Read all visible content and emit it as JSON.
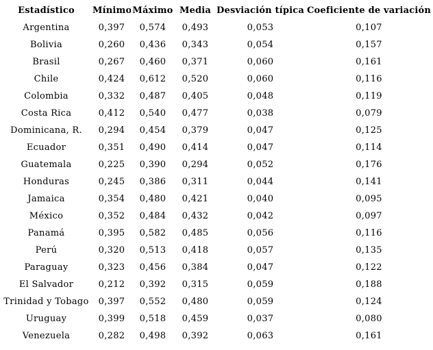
{
  "colors": {
    "background": "#ffffff",
    "text": "#000000"
  },
  "chart_data": {
    "type": "table",
    "title": "",
    "columns": [
      "Estadístico",
      "Mínimo",
      "Máximo",
      "Media",
      "Desviación típica",
      "Coeficiente de variación"
    ],
    "rows": [
      [
        "Argentina",
        "0,397",
        "0,574",
        "0,493",
        "0,053",
        "0,107"
      ],
      [
        "Bolivia",
        "0,260",
        "0,436",
        "0,343",
        "0,054",
        "0,157"
      ],
      [
        "Brasil",
        "0,267",
        "0,460",
        "0,371",
        "0,060",
        "0,161"
      ],
      [
        "Chile",
        "0,424",
        "0,612",
        "0,520",
        "0,060",
        "0,116"
      ],
      [
        "Colombia",
        "0,332",
        "0,487",
        "0,405",
        "0,048",
        "0,119"
      ],
      [
        "Costa Rica",
        "0,412",
        "0,540",
        "0,477",
        "0,038",
        "0,079"
      ],
      [
        "Dominicana, R.",
        "0,294",
        "0,454",
        "0,379",
        "0,047",
        "0,125"
      ],
      [
        "Ecuador",
        "0,351",
        "0,490",
        "0,414",
        "0,047",
        "0,114"
      ],
      [
        "Guatemala",
        "0,225",
        "0,390",
        "0,294",
        "0,052",
        "0,176"
      ],
      [
        "Honduras",
        "0,245",
        "0,386",
        "0,311",
        "0,044",
        "0,141"
      ],
      [
        "Jamaica",
        "0,354",
        "0,480",
        "0,421",
        "0,040",
        "0,095"
      ],
      [
        "México",
        "0,352",
        "0,484",
        "0,432",
        "0,042",
        "0,097"
      ],
      [
        "Panamá",
        "0,395",
        "0,582",
        "0,485",
        "0,056",
        "0,116"
      ],
      [
        "Perú",
        "0,320",
        "0,513",
        "0,418",
        "0,057",
        "0,135"
      ],
      [
        "Paraguay",
        "0,323",
        "0,456",
        "0,384",
        "0,047",
        "0,122"
      ],
      [
        "El Salvador",
        "0,212",
        "0,392",
        "0,315",
        "0,059",
        "0,188"
      ],
      [
        "Trinidad y Tobago",
        "0,397",
        "0,552",
        "0,480",
        "0,059",
        "0,124"
      ],
      [
        "Uruguay",
        "0,399",
        "0,518",
        "0,459",
        "0,037",
        "0,080"
      ],
      [
        "Venezuela",
        "0,282",
        "0,498",
        "0,392",
        "0,063",
        "0,161"
      ]
    ]
  }
}
